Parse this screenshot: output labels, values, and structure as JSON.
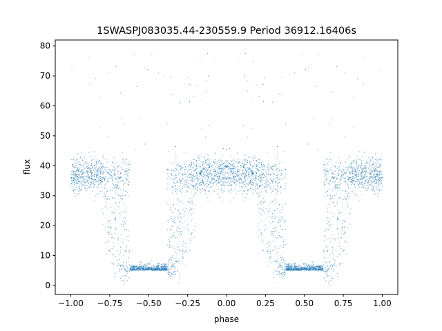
{
  "chart_data": {
    "type": "scatter",
    "title": "1SWASPJ083035.44-230559.9 Period 36912.16406s",
    "xlabel": "phase",
    "ylabel": "flux",
    "xlim": [
      -1.1,
      1.1
    ],
    "ylim": [
      -3,
      82
    ],
    "x_ticks": [
      -1.0,
      -0.75,
      -0.5,
      -0.25,
      0.0,
      0.25,
      0.5,
      0.75,
      1.0
    ],
    "x_tick_labels": [
      "−1.00",
      "−0.75",
      "−0.50",
      "−0.25",
      "0.00",
      "0.25",
      "0.50",
      "0.75",
      "1.00"
    ],
    "y_ticks": [
      0,
      10,
      20,
      30,
      40,
      50,
      60,
      70,
      80
    ],
    "y_tick_labels": [
      "0",
      "10",
      "20",
      "30",
      "40",
      "50",
      "60",
      "70",
      "80"
    ],
    "grid": false,
    "legend": "none",
    "marker_color": "#1f77b4",
    "series": [
      {
        "model": "folded eclipsing light curve, symmetric about phase 0 (repeats at ±1)",
        "points_per_half": 2600,
        "phase_range": [
          0,
          1
        ],
        "out_of_eclipse_flux": 37,
        "out_of_eclipse_scatter": 3,
        "eclipse_center_phase": 0.5,
        "eclipse_half_width": 0.3,
        "eclipse_bottom_flux": 5,
        "eclipse_bottom_half_width": 0.12,
        "ingress_egress_spread": 0.1,
        "outlier_fraction": 0.012,
        "outlier_flux_range": [
          45,
          78
        ]
      }
    ]
  }
}
